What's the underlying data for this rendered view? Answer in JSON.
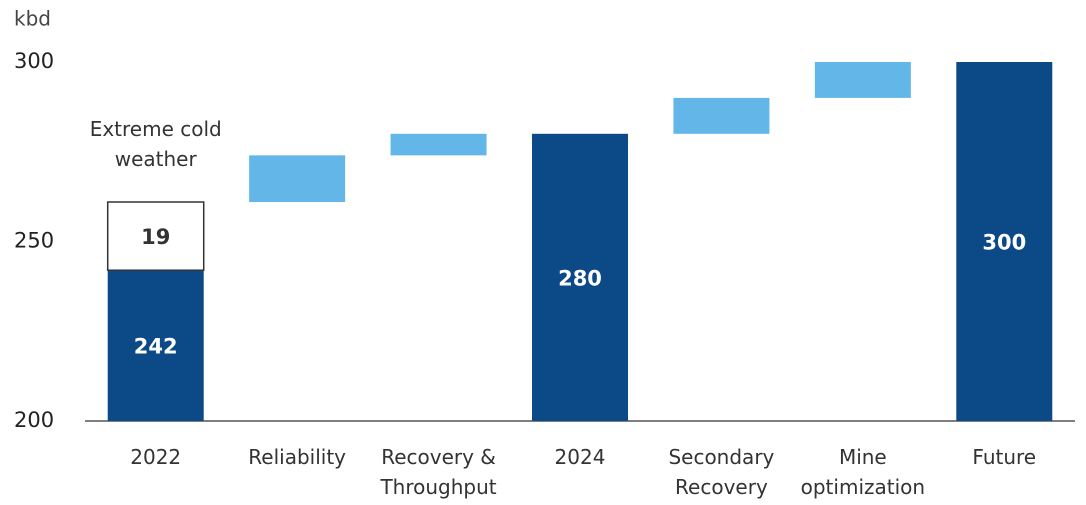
{
  "chart_data": {
    "type": "waterfall",
    "y_label": "kbd",
    "categories": [
      "2022",
      "Reliability",
      "Recovery & Throughput",
      "2024",
      "Secondary Recovery",
      "Mine optimization",
      "Future"
    ],
    "series": [
      {
        "role": "total",
        "color": "#0b4a86",
        "label_color": "#ffffff",
        "data_labels": true,
        "values": [
          242,
          null,
          null,
          280,
          null,
          null,
          300
        ]
      },
      {
        "name": "Extreme cold weather",
        "role": "delta",
        "color": "#ffffff",
        "outline": "#333333",
        "label_color": "#333333",
        "data_labels": true,
        "values": [
          19,
          null,
          null,
          null,
          null,
          null,
          null
        ]
      },
      {
        "role": "delta",
        "color": "#62b7e8",
        "data_labels": false,
        "values": [
          null,
          13,
          6,
          null,
          10,
          10,
          null
        ]
      }
    ],
    "ylim": [
      200,
      300
    ],
    "yticks": [
      200,
      250,
      300
    ]
  }
}
